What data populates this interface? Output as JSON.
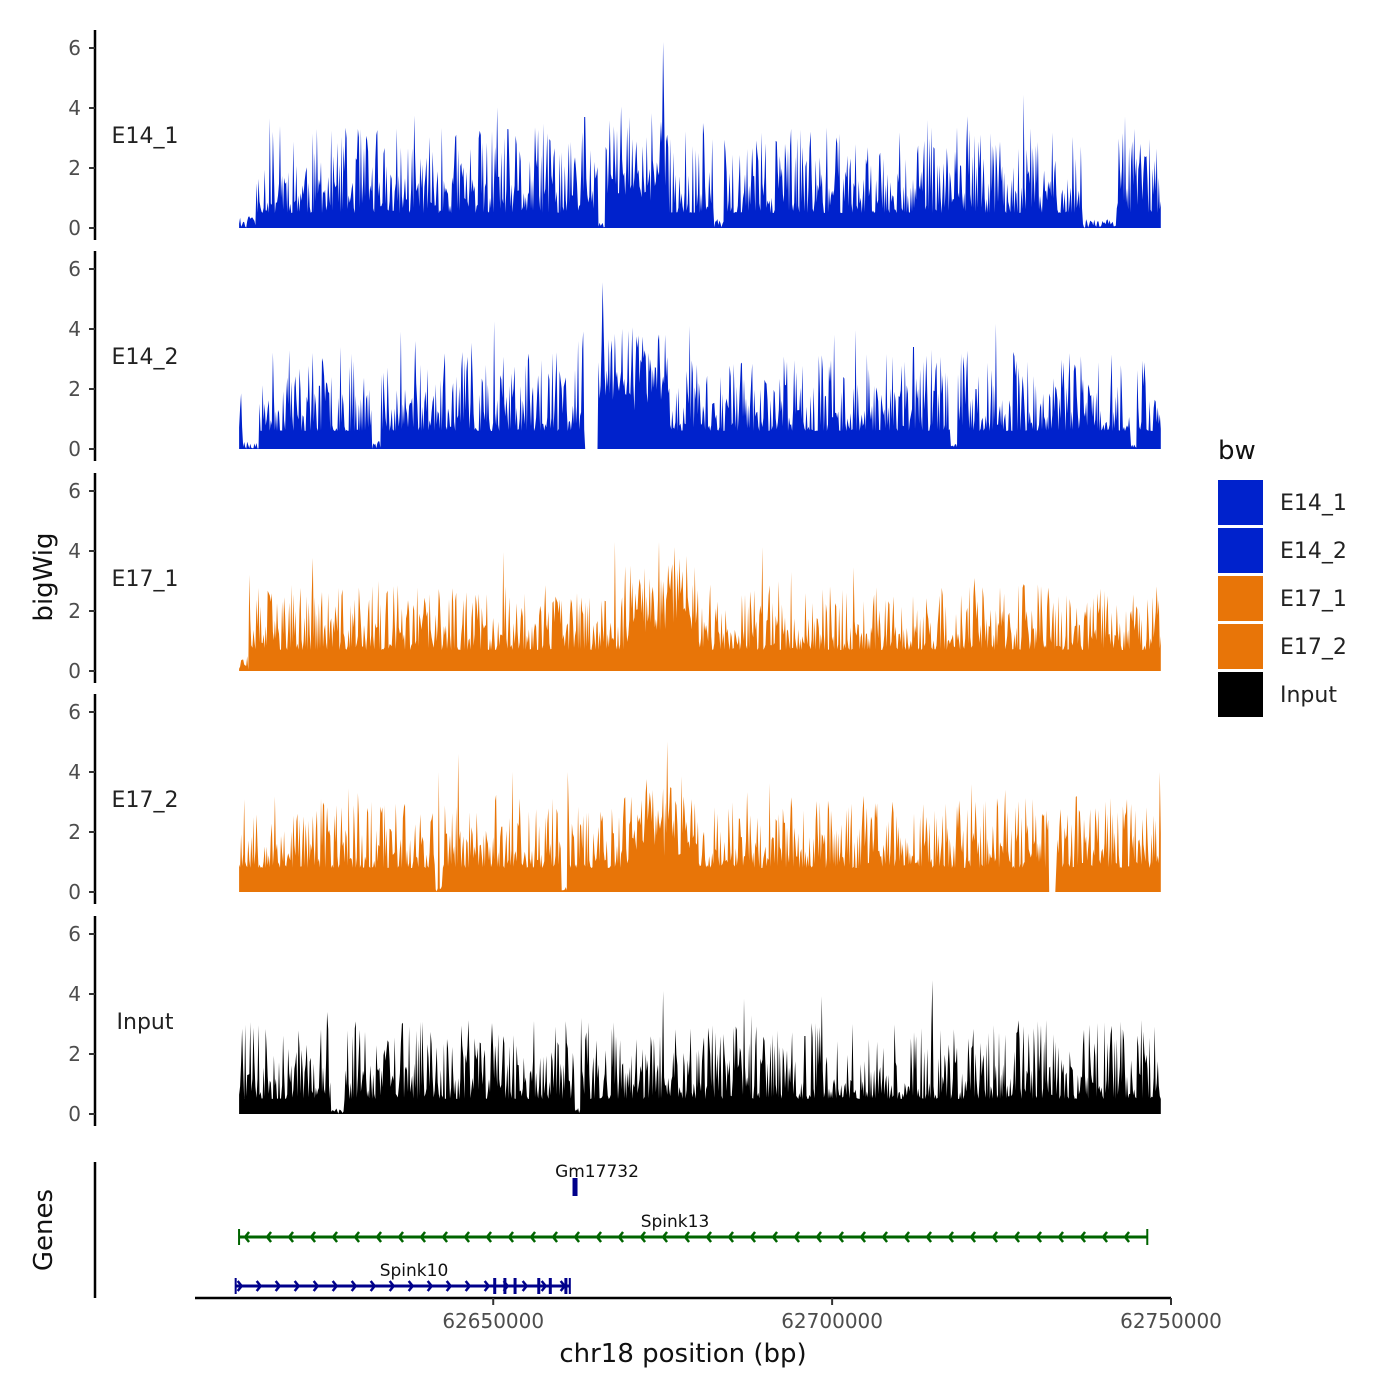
{
  "chart_data": {
    "type": "area",
    "title": "",
    "ylabel": "bigWig",
    "xlabel": "chr18 position (bp)",
    "xlim": [
      62606000,
      62750000
    ],
    "ylim": [
      0,
      6.5
    ],
    "x_ticks": [
      62650000,
      62700000,
      62750000
    ],
    "x_tick_labels": [
      "62650000",
      "62700000",
      "62750000"
    ],
    "y_ticks": [
      0,
      2,
      4,
      6
    ],
    "y_tick_labels": [
      "0",
      "2",
      "4",
      "6"
    ],
    "data_range": [
      62612500,
      62748500
    ],
    "series": [
      {
        "name": "E14_1",
        "color": "#0022CC",
        "baseline": 0.5,
        "noise": 1.3,
        "seed": 11,
        "low_regions": [
          [
            62612500,
            62615000,
            0.4
          ],
          [
            62665500,
            62666500,
            0.2
          ],
          [
            62682500,
            62684000,
            0.3
          ],
          [
            62737000,
            62742000,
            0.3
          ]
        ],
        "boost_regions": [
          [
            62665000,
            62675000,
            0.8
          ]
        ],
        "peaks": [
          [
            62675000,
            6.2
          ],
          [
            62663500,
            3.7
          ],
          [
            62681000,
            3.5
          ],
          [
            62714000,
            3.6
          ],
          [
            62618500,
            3.4
          ],
          [
            62630000,
            3.3
          ]
        ]
      },
      {
        "name": "E14_2",
        "color": "#0022CC",
        "baseline": 0.6,
        "noise": 1.2,
        "seed": 23,
        "low_regions": [
          [
            62613000,
            62615500,
            0.3
          ],
          [
            62632000,
            62633500,
            0.3
          ],
          [
            62663500,
            62665500,
            0.0
          ],
          [
            62717500,
            62718500,
            0.2
          ],
          [
            62744000,
            62745000,
            0.2
          ]
        ],
        "boost_regions": [
          [
            62665500,
            62676000,
            1.2
          ]
        ],
        "peaks": [
          [
            62679000,
            4.1
          ],
          [
            62638500,
            3.6
          ],
          [
            62673000,
            3.2
          ],
          [
            62712000,
            3.4
          ],
          [
            62627500,
            3.4
          ],
          [
            62662500,
            3.6
          ]
        ]
      },
      {
        "name": "E17_1",
        "color": "#E87508",
        "baseline": 0.7,
        "noise": 1.0,
        "seed": 37,
        "low_regions": [
          [
            62612500,
            62614000,
            0.5
          ]
        ],
        "boost_regions": [
          [
            62670000,
            62680000,
            0.9
          ]
        ],
        "peaks": [
          [
            62674500,
            4.3
          ],
          [
            62668000,
            4.3
          ],
          [
            62694000,
            3.3
          ],
          [
            62721000,
            3.1
          ],
          [
            62633000,
            3.0
          ]
        ]
      },
      {
        "name": "E17_2",
        "color": "#E87508",
        "baseline": 0.8,
        "noise": 1.1,
        "seed": 53,
        "low_regions": [
          [
            62641500,
            62642500,
            0.2
          ],
          [
            62660000,
            62661000,
            0.2
          ],
          [
            62732000,
            62733000,
            0.0
          ]
        ],
        "boost_regions": [
          [
            62670000,
            62680000,
            0.8
          ]
        ],
        "peaks": [
          [
            62642000,
            4.0
          ],
          [
            62748300,
            4.0
          ],
          [
            62720500,
            3.6
          ],
          [
            62630000,
            3.3
          ],
          [
            62673500,
            3.4
          ]
        ]
      },
      {
        "name": "Input",
        "color": "#000000",
        "baseline": 0.5,
        "noise": 1.2,
        "seed": 71,
        "low_regions": [
          [
            62626000,
            62628000,
            0.2
          ],
          [
            62662000,
            62663000,
            0.2
          ]
        ],
        "boost_regions": [],
        "peaks": [
          [
            62675000,
            4.1
          ],
          [
            62625500,
            3.4
          ],
          [
            62663000,
            3.2
          ],
          [
            62696000,
            2.6
          ],
          [
            62742000,
            2.5
          ]
        ]
      }
    ],
    "genes": [
      {
        "name": "Gm17732",
        "start": 62661700,
        "end": 62662300,
        "strand": "-",
        "color": "#00008B",
        "row": 0
      },
      {
        "name": "Spink13",
        "start": 62612500,
        "end": 62746500,
        "strand": "-",
        "color": "#006400",
        "row": 1
      },
      {
        "name": "Spink10",
        "start": 62612000,
        "end": 62661300,
        "strand": "+",
        "color": "#00008B",
        "row": 2
      }
    ],
    "legend": {
      "title": "bw",
      "position": "right",
      "entries": [
        {
          "label": "E14_1",
          "color": "#0022CC"
        },
        {
          "label": "E14_2",
          "color": "#0022CC"
        },
        {
          "label": "E17_1",
          "color": "#E87508"
        },
        {
          "label": "E17_2",
          "color": "#E87508"
        },
        {
          "label": "Input",
          "color": "#000000"
        }
      ]
    },
    "gene_track_label": "Genes"
  }
}
